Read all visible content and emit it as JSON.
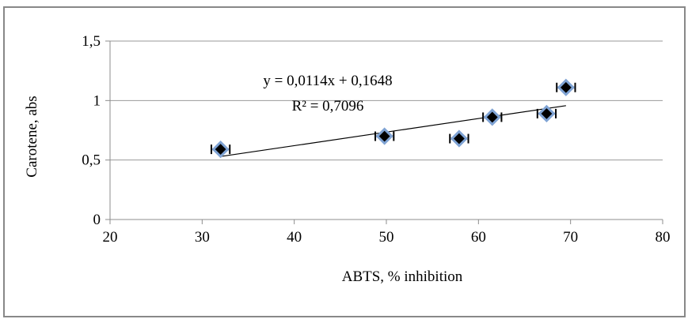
{
  "chart_data": {
    "type": "scatter",
    "xlabel": "ABTS, % inhibition",
    "ylabel": "Carotene, abs",
    "xlim": [
      20,
      80
    ],
    "ylim": [
      0,
      1.5
    ],
    "x_ticks": [
      "20",
      "30",
      "40",
      "50",
      "60",
      "70",
      "80"
    ],
    "y_ticks": [
      "0",
      "0,5",
      "1",
      "1,5"
    ],
    "grid": "horizontal",
    "legend": "none",
    "points": [
      {
        "x": 32.0,
        "y": 0.59,
        "x_err": 1.0
      },
      {
        "x": 49.8,
        "y": 0.7,
        "x_err": 1.0
      },
      {
        "x": 57.9,
        "y": 0.68,
        "x_err": 1.0
      },
      {
        "x": 61.5,
        "y": 0.86,
        "x_err": 1.0
      },
      {
        "x": 67.4,
        "y": 0.89,
        "x_err": 1.0
      },
      {
        "x": 69.5,
        "y": 1.11,
        "x_err": 1.0
      }
    ],
    "trendline": {
      "slope": 0.0114,
      "intercept": 0.1648,
      "x_range": [
        32.0,
        69.5
      ],
      "equation_label": "y = 0,0114x + 0,1648",
      "r2_label": "R² = 0,7096"
    },
    "colors": {
      "marker_fill": "#000000",
      "marker_outline": "#7FA3D4",
      "trendline": "#000000",
      "gridline": "#9a9a9a",
      "axis": "#8c8c8c"
    }
  }
}
